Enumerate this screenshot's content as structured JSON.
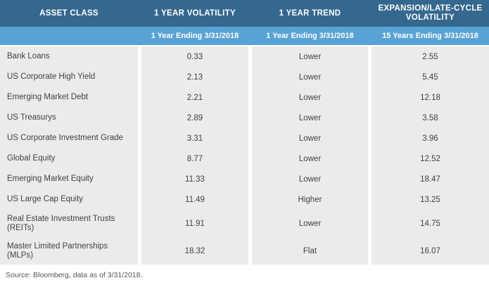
{
  "chart_data": {
    "type": "table",
    "header": {
      "asset_class": "ASSET CLASS",
      "one_year_volatility": "1 YEAR VOLATILITY",
      "one_year_trend": "1 YEAR TREND",
      "expansion_volatility": "EXPANSION/LATE-CYCLE VOLATILITY"
    },
    "subheader": {
      "asset_class": "",
      "one_year_volatility": "1 Year Ending 3/31/2018",
      "one_year_trend": "1 Year Ending 3/31/2018",
      "expansion_volatility": "15 Years Ending 3/31/2018"
    },
    "rows": [
      {
        "asset_class": "Bank Loans",
        "one_year_volatility": "0.33",
        "one_year_trend": "Lower",
        "expansion_volatility": "2.55"
      },
      {
        "asset_class": "US Corporate High Yield",
        "one_year_volatility": "2.13",
        "one_year_trend": "Lower",
        "expansion_volatility": "5.45"
      },
      {
        "asset_class": "Emerging Market Debt",
        "one_year_volatility": "2.21",
        "one_year_trend": "Lower",
        "expansion_volatility": "12.18"
      },
      {
        "asset_class": "US Treasurys",
        "one_year_volatility": "2.89",
        "one_year_trend": "Lower",
        "expansion_volatility": "3.58"
      },
      {
        "asset_class": "US Corporate Investment Grade",
        "one_year_volatility": "3.31",
        "one_year_trend": "Lower",
        "expansion_volatility": "3.96"
      },
      {
        "asset_class": "Global Equity",
        "one_year_volatility": "8.77",
        "one_year_trend": "Lower",
        "expansion_volatility": "12.52"
      },
      {
        "asset_class": "Emerging Market Equity",
        "one_year_volatility": "11.33",
        "one_year_trend": "Lower",
        "expansion_volatility": "18.47"
      },
      {
        "asset_class": "US Large Cap Equity",
        "one_year_volatility": "11.49",
        "one_year_trend": "Higher",
        "expansion_volatility": "13.25"
      },
      {
        "asset_class": "Real Estate Investment Trusts (REITs)",
        "one_year_volatility": "11.91",
        "one_year_trend": "Lower",
        "expansion_volatility": "14.75"
      },
      {
        "asset_class": "Master Limited Partnerships (MLPs)",
        "one_year_volatility": "18.32",
        "one_year_trend": "Flat",
        "expansion_volatility": "16.07"
      }
    ]
  },
  "footer": {
    "source_note": "Source: Bloomberg, data as of 3/31/2018."
  },
  "colors": {
    "header_bg": "#35688f",
    "subheader_bg": "#58a2d6",
    "header_text": "#ffffff",
    "row_bg": "#ebebec",
    "body_text": "#414042",
    "source_text": "#55565a",
    "background": "#ffffff"
  }
}
